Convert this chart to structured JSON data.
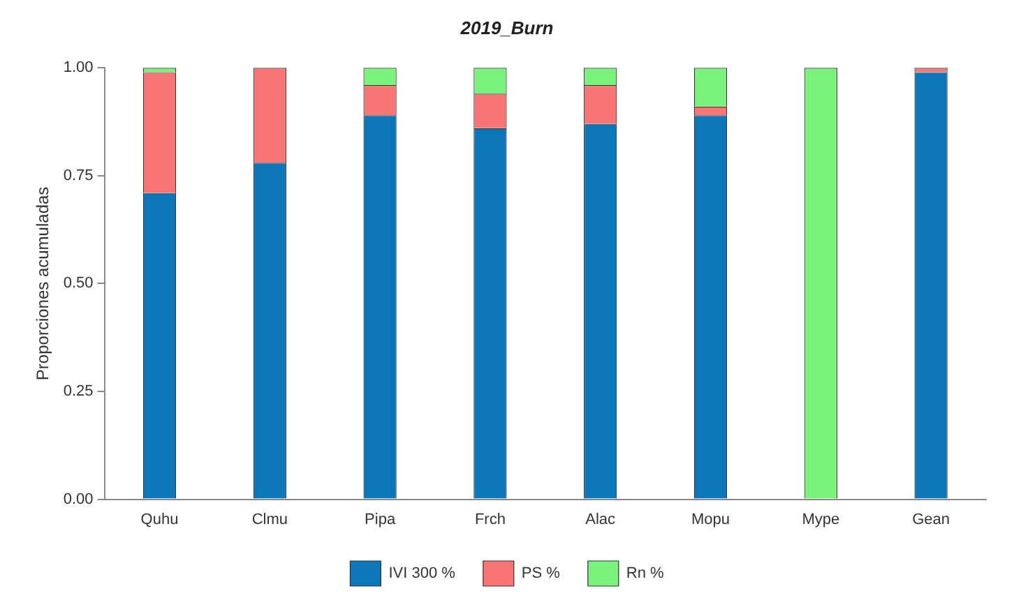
{
  "chart_data": {
    "type": "bar",
    "title": "2019_Burn",
    "ylabel": "Proporciones acumuladas",
    "categories": [
      "Quhu",
      "Clmu",
      "Pipa",
      "Frch",
      "Alac",
      "Mopu",
      "Mype",
      "Gean"
    ],
    "series": [
      {
        "name": "IVI 300 %",
        "color": "#0b76b8",
        "values": [
          0.71,
          0.78,
          0.89,
          0.86,
          0.87,
          0.89,
          0,
          0.99
        ]
      },
      {
        "name": "PS %",
        "color": "#f77675",
        "values": [
          0.28,
          0.22,
          0.07,
          0.08,
          0.09,
          0.02,
          0,
          0.01
        ]
      },
      {
        "name": "Rn %",
        "color": "#7bf27b",
        "values": [
          0.01,
          0,
          0.04,
          0.06,
          0.04,
          0.09,
          1,
          0
        ]
      }
    ],
    "stacked": true,
    "ylim": [
      0,
      1
    ],
    "yticks": [
      {
        "value": 0,
        "label": "0.00"
      },
      {
        "value": 0.25,
        "label": "0.25"
      },
      {
        "value": 0.5,
        "label": "0.50"
      },
      {
        "value": 0.75,
        "label": "0.75"
      },
      {
        "value": 1,
        "label": "1.00"
      }
    ],
    "grid": false,
    "legend": "bottom"
  }
}
